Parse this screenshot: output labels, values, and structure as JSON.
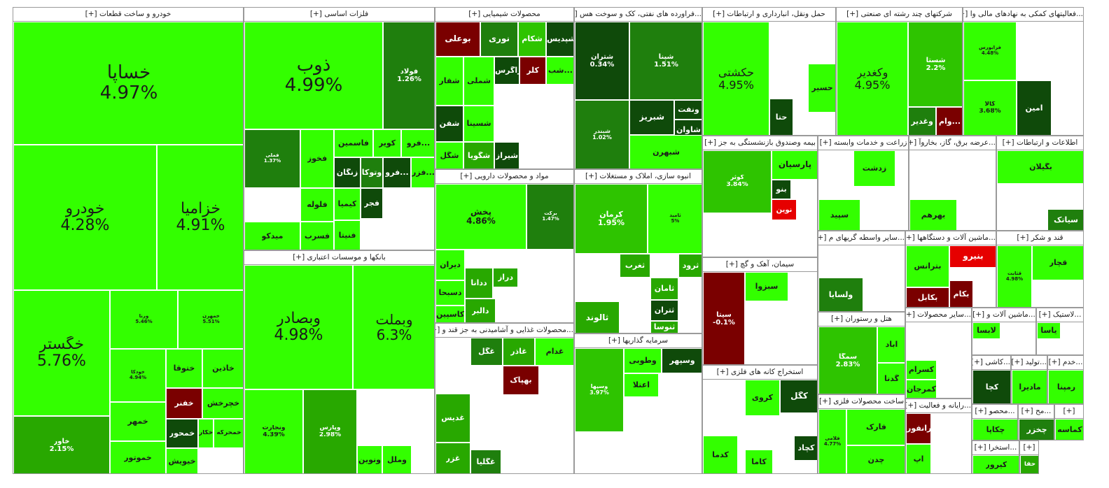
{
  "chart_data": {
    "type": "treemap",
    "sectors": [
      {
        "name": "خودرو و ساخت قطعات [+]",
        "tickers": [
          {
            "name": "خساپا",
            "pct": "4.97%"
          },
          {
            "name": "خودرو",
            "pct": "4.28%"
          },
          {
            "name": "خزامیا",
            "pct": "4.91%"
          },
          {
            "name": "خگستر",
            "pct": "5.76%"
          },
          {
            "name": "خاور",
            "pct": "2.15%"
          },
          {
            "name": "ورنا",
            "pct": "5.46%"
          },
          {
            "name": "خمهرن",
            "pct": "5.51%"
          },
          {
            "name": "خودکا",
            "pct": "4.94%"
          },
          {
            "name": "ختوقا",
            "pct": ""
          },
          {
            "name": "خاذین",
            "pct": ""
          },
          {
            "name": "خفنر",
            "pct": ""
          },
          {
            "name": "خچرخش",
            "pct": ""
          },
          {
            "name": "خمحور",
            "pct": ""
          },
          {
            "name": "خیویش",
            "pct": ""
          },
          {
            "name": "خمهر",
            "pct": ""
          },
          {
            "name": "خموتور",
            "pct": ""
          },
          {
            "name": "خکار",
            "pct": ""
          },
          {
            "name": "خمحرکه",
            "pct": ""
          }
        ]
      },
      {
        "name": "فلزات اساسی [+]",
        "tickers": [
          {
            "name": "ذوب",
            "pct": "4.99%"
          },
          {
            "name": "فولاد",
            "pct": "1.26%"
          },
          {
            "name": "فملی",
            "pct": "1.37%"
          },
          {
            "name": "فخوز",
            "pct": ""
          },
          {
            "name": "فاسمین",
            "pct": ""
          },
          {
            "name": "کویر",
            "pct": ""
          },
          {
            "name": "فرو...",
            "pct": ""
          },
          {
            "name": "زنگان",
            "pct": ""
          },
          {
            "name": "وتوکا",
            "pct": ""
          },
          {
            "name": "فرو...",
            "pct": ""
          },
          {
            "name": "فلوله",
            "pct": ""
          },
          {
            "name": "کیمیا",
            "pct": ""
          },
          {
            "name": "فسرب",
            "pct": ""
          },
          {
            "name": "میدکو",
            "pct": ""
          },
          {
            "name": "فجر",
            "pct": ""
          },
          {
            "name": "فنیتا",
            "pct": ""
          },
          {
            "name": "فزر...",
            "pct": ""
          }
        ]
      },
      {
        "name": "محصولات شیمیایی [+]",
        "tickers": [
          {
            "name": "بوعلی",
            "pct": ""
          },
          {
            "name": "نوری",
            "pct": ""
          },
          {
            "name": "شکام",
            "pct": ""
          },
          {
            "name": "شپدیس",
            "pct": ""
          },
          {
            "name": "شفار",
            "pct": ""
          },
          {
            "name": "شملی",
            "pct": ""
          },
          {
            "name": "زاگرس",
            "pct": ""
          },
          {
            "name": "کلر",
            "pct": ""
          },
          {
            "name": "شب...",
            "pct": ""
          },
          {
            "name": "شفن",
            "pct": ""
          },
          {
            "name": "شسینا",
            "pct": ""
          },
          {
            "name": "شگویا",
            "pct": ""
          },
          {
            "name": "شگل",
            "pct": ""
          },
          {
            "name": "شیراز",
            "pct": ""
          }
        ]
      },
      {
        "name": "...فراورده های نفتی، کک و سوخت هس [+]",
        "tickers": [
          {
            "name": "شتران",
            "pct": "0.34%"
          },
          {
            "name": "شپنا",
            "pct": "1.51%"
          },
          {
            "name": "شبندر",
            "pct": "1.02%"
          },
          {
            "name": "شبریز",
            "pct": ""
          },
          {
            "name": "ونفت",
            "pct": ""
          },
          {
            "name": "شاوان",
            "pct": ""
          },
          {
            "name": "شبهرن",
            "pct": ""
          }
        ]
      },
      {
        "name": "حمل ونقل، انبارداری و ارتباطات [+]",
        "tickers": [
          {
            "name": "حکشتی",
            "pct": "4.95%"
          },
          {
            "name": "حسیر",
            "pct": ""
          },
          {
            "name": "حتا",
            "pct": ""
          }
        ]
      },
      {
        "name": "شرکتهای چند رشته ای صنعتی [+]",
        "tickers": [
          {
            "name": "وکغدیر",
            "pct": "4.95%"
          },
          {
            "name": "شستا",
            "pct": "2.2%"
          },
          {
            "name": "وغدیر",
            "pct": ""
          },
          {
            "name": "وام...",
            "pct": ""
          }
        ]
      },
      {
        "name": "...فعالیتهای کمکی به نهادهای مالی وا [+]",
        "tickers": [
          {
            "name": "فرابورس",
            "pct": "4.48%"
          },
          {
            "name": "کالا",
            "pct": "3.68%"
          },
          {
            "name": "امین",
            "pct": ""
          }
        ]
      },
      {
        "name": "مواد و محصولات دارویی [+]",
        "tickers": [
          {
            "name": "پخش",
            "pct": "4.86%"
          },
          {
            "name": "برکت",
            "pct": "1.47%"
          },
          {
            "name": "دیران",
            "pct": ""
          },
          {
            "name": "دسبحا",
            "pct": ""
          },
          {
            "name": "کاسپین",
            "pct": ""
          },
          {
            "name": "دالبر",
            "pct": ""
          },
          {
            "name": "ددانا",
            "pct": ""
          },
          {
            "name": "دراز",
            "pct": ""
          }
        ]
      },
      {
        "name": "انبوه سازی، املاک و مستغلات [+]",
        "tickers": [
          {
            "name": "کرمان",
            "pct": "1.95%"
          },
          {
            "name": "ثامید",
            "pct": "5%"
          },
          {
            "name": "ثالوند",
            "pct": ""
          },
          {
            "name": "ثغرب",
            "pct": ""
          },
          {
            "name": "ثامان",
            "pct": ""
          },
          {
            "name": "ثتران",
            "pct": ""
          },
          {
            "name": "ثنوسا",
            "pct": ""
          },
          {
            "name": "ثرود",
            "pct": ""
          }
        ]
      },
      {
        "name": "بانکها و موسسات اعتباری [+]",
        "tickers": [
          {
            "name": "وبصادر",
            "pct": "4.98%"
          },
          {
            "name": "وبملت",
            "pct": "6.3%"
          },
          {
            "name": "ونجارت",
            "pct": "4.39%"
          },
          {
            "name": "وپارس",
            "pct": "2.98%"
          },
          {
            "name": "ونوین",
            "pct": ""
          },
          {
            "name": "وملل",
            "pct": ""
          }
        ]
      },
      {
        "name": "...محصولات غذایی و آشامیدنی به جز قند و [+]",
        "tickers": [
          {
            "name": "غگل",
            "pct": ""
          },
          {
            "name": "غاذر",
            "pct": ""
          },
          {
            "name": "غدام",
            "pct": ""
          },
          {
            "name": "بهپاک",
            "pct": ""
          },
          {
            "name": "غدیس",
            "pct": ""
          },
          {
            "name": "غزر",
            "pct": ""
          },
          {
            "name": "غگلیا",
            "pct": ""
          }
        ]
      },
      {
        "name": "سرمایه گذاریها [+]",
        "tickers": [
          {
            "name": "وسپها",
            "pct": "3.97%"
          },
          {
            "name": "وطوبی",
            "pct": ""
          },
          {
            "name": "وسپهر",
            "pct": ""
          },
          {
            "name": "اعتلا",
            "pct": ""
          }
        ]
      },
      {
        "name": "بیمه وصندوق بازنشستگی به جز [+]",
        "tickers": [
          {
            "name": "کوثر",
            "pct": "3.84%"
          },
          {
            "name": "پارسیان",
            "pct": ""
          },
          {
            "name": "بنو",
            "pct": ""
          },
          {
            "name": "نوین",
            "pct": ""
          }
        ]
      },
      {
        "name": "زراعت و خدمات وابسته [+]",
        "tickers": [
          {
            "name": "زدشت",
            "pct": ""
          },
          {
            "name": "سپید",
            "pct": ""
          }
        ]
      },
      {
        "name": "...عرضه برق، گاز، بخاروآ [+]",
        "tickers": [
          {
            "name": "بهرهم",
            "pct": ""
          }
        ]
      },
      {
        "name": "اطلاعات و ارتباطات [+]",
        "tickers": [
          {
            "name": "بگیلان",
            "pct": ""
          },
          {
            "name": "سیاتک",
            "pct": ""
          }
        ]
      },
      {
        "name": "سیمان، آهک و گچ [+]",
        "tickers": [
          {
            "name": "سیتا",
            "pct": "-0.1%"
          },
          {
            "name": "سبزوا",
            "pct": ""
          }
        ]
      },
      {
        "name": "...سایر واسطه گریهای م [+]",
        "tickers": [
          {
            "name": "ولسایا",
            "pct": ""
          }
        ]
      },
      {
        "name": "...ماشین آلات و دستگاهها [+]",
        "tickers": [
          {
            "name": "بترانس",
            "pct": ""
          },
          {
            "name": "بنیرو",
            "pct": ""
          },
          {
            "name": "بکابل",
            "pct": ""
          },
          {
            "name": "بکام",
            "pct": ""
          }
        ]
      },
      {
        "name": "قند و شکر [+]",
        "tickers": [
          {
            "name": "قچار",
            "pct": ""
          },
          {
            "name": "قثابت",
            "pct": "4.98%"
          }
        ]
      },
      {
        "name": "هتل و رستوران [+]",
        "tickers": [
          {
            "name": "سمگا",
            "pct": "2.83%"
          },
          {
            "name": "آباد",
            "pct": ""
          },
          {
            "name": "گدنا",
            "pct": ""
          }
        ]
      },
      {
        "name": "استخراج کانه های فلزی [+]",
        "tickers": [
          {
            "name": "کگل",
            "pct": ""
          },
          {
            "name": "کروی",
            "pct": ""
          },
          {
            "name": "کچاد",
            "pct": ""
          },
          {
            "name": "کدما",
            "pct": ""
          },
          {
            "name": "کاما",
            "pct": ""
          }
        ]
      },
      {
        "name": "ساخت محصولات فلزی [+]",
        "tickers": [
          {
            "name": "فارک",
            "pct": ""
          },
          {
            "name": "چدن",
            "pct": ""
          },
          {
            "name": "فلامی",
            "pct": "4.77%"
          }
        ]
      },
      {
        "name": "...سایر محصولات [+]",
        "tickers": [
          {
            "name": "کسرام",
            "pct": ""
          },
          {
            "name": "کمرجان",
            "pct": ""
          }
        ]
      },
      {
        "name": "...رایانه و فعالیت [+]",
        "tickers": [
          {
            "name": "رانفور",
            "pct": ""
          },
          {
            "name": "آپ",
            "pct": ""
          }
        ]
      },
      {
        "name": "...ماشین آلات و [+]",
        "tickers": [
          {
            "name": "لابسا",
            "pct": ""
          }
        ]
      },
      {
        "name": "...لاستیک [+]",
        "tickers": [
          {
            "name": "یاسا",
            "pct": ""
          }
        ]
      },
      {
        "name": "...کاشی [+]",
        "tickers": [
          {
            "name": "کچا",
            "pct": ""
          }
        ]
      },
      {
        "name": "...تولید [+]",
        "tickers": [
          {
            "name": "مادیرا",
            "pct": ""
          }
        ]
      },
      {
        "name": "...خدم [+]",
        "tickers": [
          {
            "name": "رمپنا",
            "pct": ""
          }
        ]
      },
      {
        "name": "...محصو [+]",
        "tickers": [
          {
            "name": "چکاپا",
            "pct": ""
          }
        ]
      },
      {
        "name": "...مح [+]",
        "tickers": [
          {
            "name": "چخزر",
            "pct": ""
          }
        ]
      },
      {
        "name": "[+]",
        "tickers": [
          {
            "name": "کماسه",
            "pct": ""
          }
        ]
      },
      {
        "name": "...استخرا [+]",
        "tickers": [
          {
            "name": "کیرور",
            "pct": ""
          }
        ]
      },
      {
        "name": "[+]",
        "tickers": [
          {
            "name": "حفا",
            "pct": ""
          }
        ]
      }
    ]
  }
}
